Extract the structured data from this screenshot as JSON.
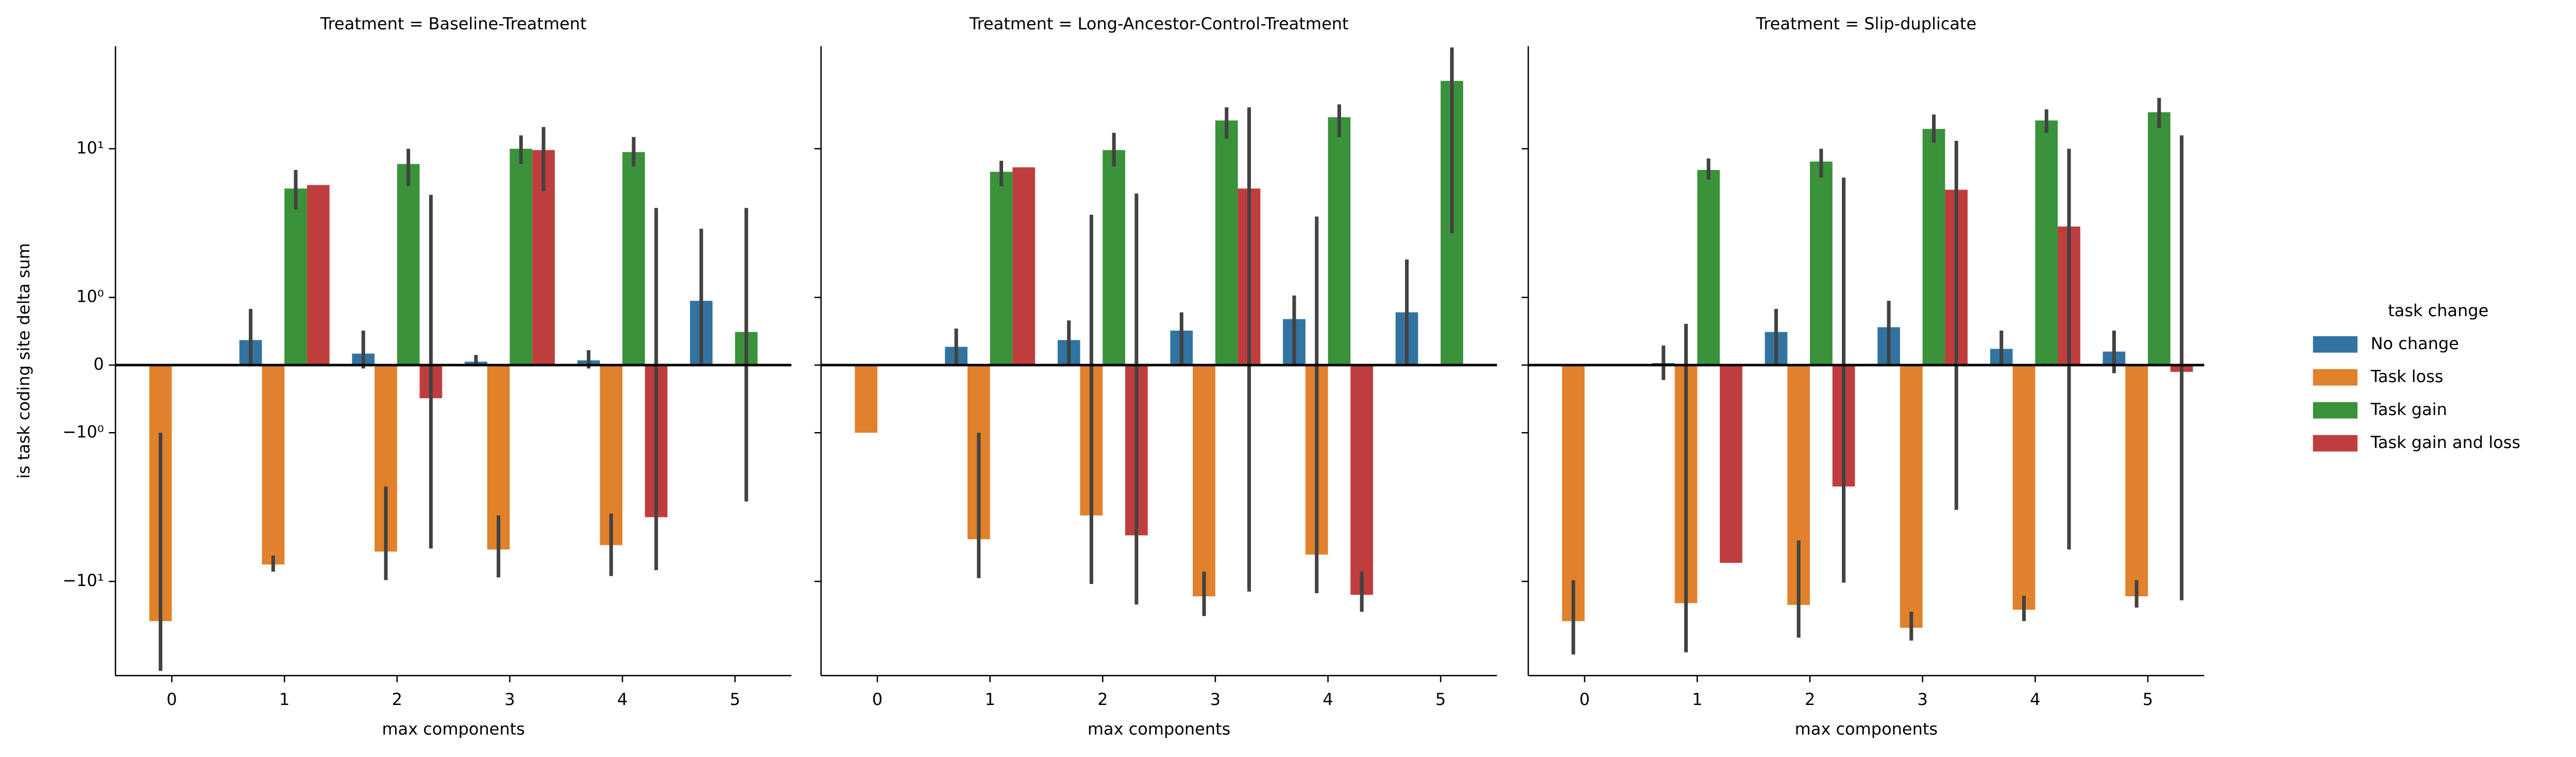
{
  "chart_data": [
    {
      "type": "bar",
      "title": "Treatment = Baseline-Treatment",
      "xlabel": "max components",
      "ylabel": "is task coding site delta sum",
      "yscale": "symlog",
      "ylim": [
        -43,
        49
      ],
      "yticks": [
        {
          "value": -10,
          "label": "−10¹"
        },
        {
          "value": -1,
          "label": "−10⁰"
        },
        0,
        {
          "value": 1,
          "label": "10⁰"
        },
        {
          "value": 10,
          "label": "10¹"
        }
      ],
      "legend_title": "task change",
      "legend": "right",
      "categories": [
        0,
        1,
        2,
        3,
        4,
        5
      ],
      "series": [
        {
          "name": "No change",
          "color": "#3274a1",
          "values": [
            null,
            0.37,
            0.17,
            0.05,
            0.07,
            0.95
          ],
          "errors": [
            null,
            [
              -0.02,
              0.83
            ],
            [
              -0.05,
              0.51
            ],
            [
              -0.02,
              0.15
            ],
            [
              -0.05,
              0.22
            ],
            [
              0,
              2.9
            ]
          ]
        },
        {
          "name": "Task loss",
          "color": "#e1812c",
          "values": [
            -18.5,
            -7.7,
            -6.3,
            -6.1,
            -5.7,
            null
          ],
          "errors": [
            [
              -40,
              -1
            ],
            [
              -8.6,
              -6.7
            ],
            [
              -9.8,
              -2.3
            ],
            [
              -9.4,
              -3.6
            ],
            [
              -9.2,
              -3.5
            ],
            null
          ]
        },
        {
          "name": "Task gain",
          "color": "#3a923a",
          "values": [
            null,
            5.4,
            7.9,
            10,
            9.5,
            0.49
          ],
          "errors": [
            null,
            [
              3.9,
              7.2
            ],
            [
              5.6,
              10
            ],
            [
              7.9,
              12.3
            ],
            [
              7.6,
              12
            ],
            [
              -2.9,
              4
            ]
          ]
        },
        {
          "name": "Task gain and loss",
          "color": "#c03d3e",
          "values": [
            null,
            5.7,
            -0.49,
            9.8,
            -3.7,
            null
          ],
          "errors": [
            null,
            null,
            [
              -6,
              4.9
            ],
            [
              5.2,
              14
            ],
            [
              -8.4,
              4
            ],
            null
          ]
        }
      ]
    },
    {
      "type": "bar",
      "title": "Treatment = Long-Ancestor-Control-Treatment",
      "xlabel": "max components",
      "categories": [
        0,
        1,
        2,
        3,
        4,
        5
      ],
      "series": [
        {
          "color": "#3274a1",
          "values": [
            null,
            0.27,
            0.37,
            0.51,
            0.68,
            0.78
          ],
          "errors": [
            null,
            [
              0,
              0.54
            ],
            [
              0,
              0.66
            ],
            [
              0,
              0.78
            ],
            [
              0,
              1.03
            ],
            [
              0,
              1.8
            ]
          ]
        },
        {
          "color": "#e1812c",
          "values": [
            -1,
            -5.2,
            -3.6,
            -12.6,
            -6.6,
            null
          ],
          "errors": [
            null,
            [
              -9.5,
              -1
            ],
            [
              -10.4,
              3.6
            ],
            [
              -17.1,
              -8.6
            ],
            [
              -12,
              3.5
            ],
            null
          ]
        },
        {
          "color": "#3a923a",
          "values": [
            null,
            7,
            9.8,
            15.5,
            16.3,
            28.6
          ],
          "errors": [
            null,
            [
              5.6,
              8.3
            ],
            [
              7.6,
              12.8
            ],
            [
              11.7,
              19
            ],
            [
              12,
              19.9
            ],
            [
              2.7,
              48
            ]
          ]
        },
        {
          "color": "#c03d3e",
          "values": [
            null,
            7.5,
            -4.9,
            5.4,
            -12.3,
            null
          ],
          "errors": [
            null,
            null,
            [
              -14.3,
              5
            ],
            [
              -11.7,
              19
            ],
            [
              -16,
              -8.6
            ],
            null
          ]
        }
      ]
    },
    {
      "type": "bar",
      "title": "Treatment = Slip-duplicate",
      "xlabel": "max components",
      "categories": [
        0,
        1,
        2,
        3,
        4,
        5
      ],
      "series": [
        {
          "color": "#3274a1",
          "values": [
            null,
            0.03,
            0.49,
            0.56,
            0.24,
            0.2
          ],
          "errors": [
            null,
            [
              -0.22,
              0.29
            ],
            [
              0,
              0.83
            ],
            [
              0,
              0.95
            ],
            [
              0,
              0.51
            ],
            [
              -0.12,
              0.51
            ]
          ]
        },
        {
          "color": "#e1812c",
          "values": [
            -18.5,
            -14,
            -14.4,
            -20.5,
            -15.5,
            -12.6
          ],
          "errors": [
            [
              -31,
              -9.8
            ],
            [
              -30,
              0.61
            ],
            [
              -23.9,
              -5.3
            ],
            [
              -25,
              -16
            ],
            [
              -18.5,
              -12.5
            ],
            [
              -15,
              -9.8
            ]
          ]
        },
        {
          "color": "#3a923a",
          "values": [
            null,
            7.2,
            8.2,
            13.6,
            15.5,
            17.6
          ],
          "errors": [
            null,
            [
              6.2,
              8.6
            ],
            [
              6.4,
              10
            ],
            [
              11,
              17
            ],
            [
              12.8,
              18.4
            ],
            [
              13.8,
              22
            ]
          ]
        },
        {
          "color": "#c03d3e",
          "values": [
            null,
            -7.5,
            -2.3,
            5.3,
            3,
            -0.1
          ],
          "errors": [
            null,
            null,
            [
              -10.2,
              6.4
            ],
            [
              -3.3,
              11.3
            ],
            [
              -6.1,
              10
            ],
            [
              -13.4,
              12.3
            ]
          ]
        }
      ]
    }
  ]
}
